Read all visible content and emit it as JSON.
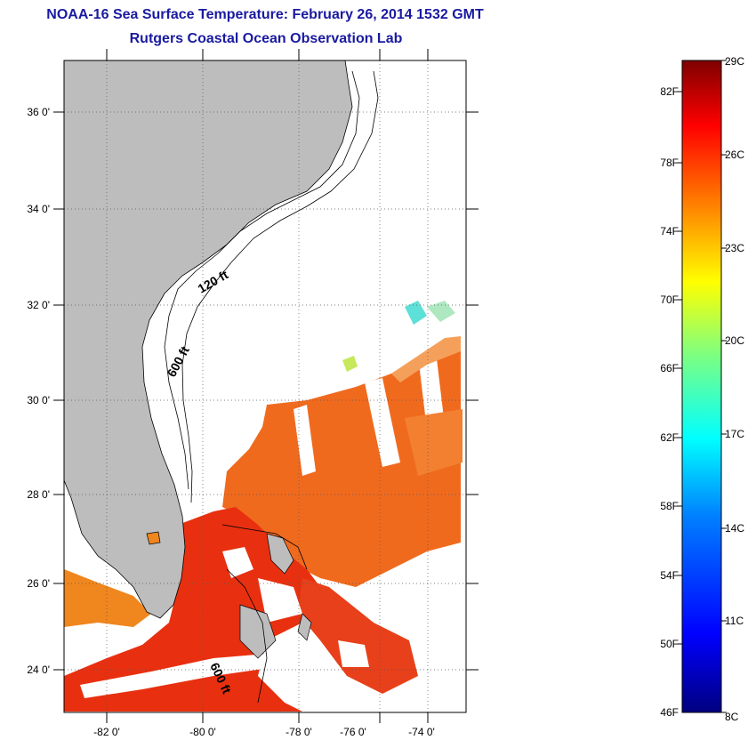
{
  "title": "NOAA-16 Sea Surface Temperature:  February 26, 2014 1532 GMT",
  "subtitle": "Rutgers Coastal Ocean Observation Lab",
  "map": {
    "lat_labels": [
      "36 0'",
      "34 0'",
      "32 0'",
      "30 0'",
      "28 0'",
      "26 0'",
      "24 0'"
    ],
    "lon_labels": [
      "-82 0'",
      "-80 0'",
      "-78 0'",
      "-76 0'",
      "-74 0'"
    ],
    "contour_labels": [
      "120 ft",
      "600 ft",
      "600 ft"
    ],
    "colors": {
      "land": "#bdbdbd",
      "no_data": "#ffffff",
      "warm": "#e83010",
      "mid": "#f06a1e"
    }
  },
  "colorbar": {
    "fahrenheit_labels": [
      "82F",
      "78F",
      "74F",
      "70F",
      "66F",
      "62F",
      "58F",
      "54F",
      "50F",
      "46F"
    ],
    "celsius_labels": [
      "29C",
      "26C",
      "23C",
      "20C",
      "17C",
      "14C",
      "11C",
      "8C"
    ],
    "colors": [
      "#00007f",
      "#0000ff",
      "#007fff",
      "#00ffff",
      "#7fff7f",
      "#ffff00",
      "#ff7f00",
      "#ff0000",
      "#7f0000"
    ]
  }
}
